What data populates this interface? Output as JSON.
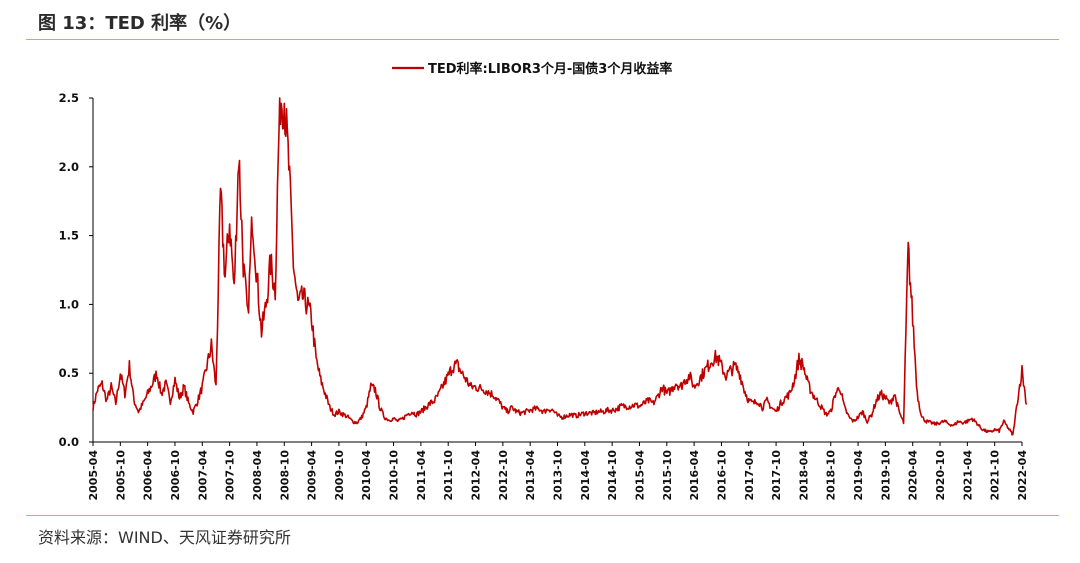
{
  "figure": {
    "title": "图 13：TED 利率（%）",
    "source": "资料来源：WIND、天风证券研究所"
  },
  "colors": {
    "series": "#c00000",
    "rule": "#d9a45c",
    "axis": "#000000"
  },
  "chart_data": {
    "type": "line",
    "title": "",
    "xlabel": "",
    "ylabel": "",
    "ylim": [
      0,
      2.5
    ],
    "yticks": [
      "0.0",
      "0.5",
      "1.0",
      "1.5",
      "2.0",
      "2.5"
    ],
    "xticks": [
      "2005-04",
      "2005-10",
      "2006-04",
      "2006-10",
      "2007-04",
      "2007-10",
      "2008-04",
      "2008-10",
      "2009-04",
      "2009-10",
      "2010-04",
      "2010-10",
      "2011-04",
      "2011-10",
      "2012-04",
      "2012-10",
      "2013-04",
      "2013-10",
      "2014-04",
      "2014-10",
      "2015-04",
      "2015-10",
      "2016-04",
      "2016-10",
      "2017-04",
      "2017-10",
      "2018-04",
      "2018-10",
      "2019-04",
      "2019-10",
      "2020-04",
      "2020-10",
      "2021-04",
      "2021-10",
      "2022-04"
    ],
    "legend": "top-center",
    "grid": false,
    "series": [
      {
        "name": "TED利率:LIBOR3个月-国债3个月收益率",
        "color": "#c00000",
        "points": [
          [
            "2005-04",
            0.25
          ],
          [
            "2005-05",
            0.38
          ],
          [
            "2005-06",
            0.42
          ],
          [
            "2005-07",
            0.3
          ],
          [
            "2005-08",
            0.4
          ],
          [
            "2005-09",
            0.28
          ],
          [
            "2005-10",
            0.5
          ],
          [
            "2005-11",
            0.35
          ],
          [
            "2005-12",
            0.55
          ],
          [
            "2006-01",
            0.3
          ],
          [
            "2006-02",
            0.22
          ],
          [
            "2006-03",
            0.28
          ],
          [
            "2006-04",
            0.35
          ],
          [
            "2006-05",
            0.42
          ],
          [
            "2006-06",
            0.5
          ],
          [
            "2006-07",
            0.35
          ],
          [
            "2006-08",
            0.42
          ],
          [
            "2006-09",
            0.3
          ],
          [
            "2006-10",
            0.45
          ],
          [
            "2006-11",
            0.32
          ],
          [
            "2006-12",
            0.4
          ],
          [
            "2007-01",
            0.28
          ],
          [
            "2007-02",
            0.22
          ],
          [
            "2007-03",
            0.3
          ],
          [
            "2007-04",
            0.4
          ],
          [
            "2007-05",
            0.55
          ],
          [
            "2007-06",
            0.7
          ],
          [
            "2007-07",
            0.4
          ],
          [
            "2007-08",
            1.8
          ],
          [
            "2007-09",
            1.2
          ],
          [
            "2007-10",
            1.6
          ],
          [
            "2007-11",
            1.1
          ],
          [
            "2007-12",
            2.1
          ],
          [
            "2008-01",
            1.3
          ],
          [
            "2008-02",
            0.9
          ],
          [
            "2008-03",
            1.65
          ],
          [
            "2008-04",
            1.2
          ],
          [
            "2008-05",
            0.8
          ],
          [
            "2008-06",
            1.0
          ],
          [
            "2008-07",
            1.3
          ],
          [
            "2008-08",
            1.1
          ],
          [
            "2008-09",
            2.5
          ],
          [
            "2008-10",
            2.5
          ],
          [
            "2008-11",
            2.0
          ],
          [
            "2008-12",
            1.3
          ],
          [
            "2009-01",
            1.0
          ],
          [
            "2009-02",
            1.05
          ],
          [
            "2009-03",
            1.0
          ],
          [
            "2009-04",
            0.9
          ],
          [
            "2009-05",
            0.6
          ],
          [
            "2009-06",
            0.45
          ],
          [
            "2009-07",
            0.35
          ],
          [
            "2009-08",
            0.25
          ],
          [
            "2009-09",
            0.2
          ],
          [
            "2009-10",
            0.22
          ],
          [
            "2009-11",
            0.2
          ],
          [
            "2009-12",
            0.18
          ],
          [
            "2010-01",
            0.15
          ],
          [
            "2010-02",
            0.14
          ],
          [
            "2010-03",
            0.18
          ],
          [
            "2010-04",
            0.25
          ],
          [
            "2010-05",
            0.4
          ],
          [
            "2010-06",
            0.38
          ],
          [
            "2010-07",
            0.25
          ],
          [
            "2010-08",
            0.18
          ],
          [
            "2010-09",
            0.16
          ],
          [
            "2010-10",
            0.17
          ],
          [
            "2010-11",
            0.15
          ],
          [
            "2010-12",
            0.17
          ],
          [
            "2011-01",
            0.2
          ],
          [
            "2011-02",
            0.22
          ],
          [
            "2011-03",
            0.2
          ],
          [
            "2011-04",
            0.22
          ],
          [
            "2011-05",
            0.25
          ],
          [
            "2011-06",
            0.28
          ],
          [
            "2011-07",
            0.3
          ],
          [
            "2011-08",
            0.35
          ],
          [
            "2011-09",
            0.42
          ],
          [
            "2011-10",
            0.48
          ],
          [
            "2011-11",
            0.55
          ],
          [
            "2011-12",
            0.56
          ],
          [
            "2012-01",
            0.5
          ],
          [
            "2012-02",
            0.45
          ],
          [
            "2012-03",
            0.4
          ],
          [
            "2012-04",
            0.4
          ],
          [
            "2012-05",
            0.39
          ],
          [
            "2012-06",
            0.38
          ],
          [
            "2012-07",
            0.36
          ],
          [
            "2012-08",
            0.34
          ],
          [
            "2012-09",
            0.3
          ],
          [
            "2012-10",
            0.25
          ],
          [
            "2012-11",
            0.22
          ],
          [
            "2012-12",
            0.25
          ],
          [
            "2013-01",
            0.22
          ],
          [
            "2013-02",
            0.21
          ],
          [
            "2013-03",
            0.22
          ],
          [
            "2013-04",
            0.23
          ],
          [
            "2013-05",
            0.24
          ],
          [
            "2013-06",
            0.24
          ],
          [
            "2013-07",
            0.22
          ],
          [
            "2013-08",
            0.24
          ],
          [
            "2013-09",
            0.23
          ],
          [
            "2013-10",
            0.19
          ],
          [
            "2013-11",
            0.18
          ],
          [
            "2013-12",
            0.19
          ],
          [
            "2014-01",
            0.2
          ],
          [
            "2014-02",
            0.19
          ],
          [
            "2014-03",
            0.2
          ],
          [
            "2014-04",
            0.21
          ],
          [
            "2014-05",
            0.21
          ],
          [
            "2014-06",
            0.21
          ],
          [
            "2014-07",
            0.22
          ],
          [
            "2014-08",
            0.22
          ],
          [
            "2014-09",
            0.23
          ],
          [
            "2014-10",
            0.23
          ],
          [
            "2014-11",
            0.24
          ],
          [
            "2014-12",
            0.26
          ],
          [
            "2015-01",
            0.26
          ],
          [
            "2015-02",
            0.26
          ],
          [
            "2015-03",
            0.27
          ],
          [
            "2015-04",
            0.26
          ],
          [
            "2015-05",
            0.28
          ],
          [
            "2015-06",
            0.3
          ],
          [
            "2015-07",
            0.28
          ],
          [
            "2015-08",
            0.33
          ],
          [
            "2015-09",
            0.4
          ],
          [
            "2015-10",
            0.35
          ],
          [
            "2015-11",
            0.38
          ],
          [
            "2015-12",
            0.43
          ],
          [
            "2016-01",
            0.4
          ],
          [
            "2016-02",
            0.45
          ],
          [
            "2016-03",
            0.48
          ],
          [
            "2016-04",
            0.4
          ],
          [
            "2016-05",
            0.45
          ],
          [
            "2016-06",
            0.5
          ],
          [
            "2016-07",
            0.55
          ],
          [
            "2016-08",
            0.6
          ],
          [
            "2016-09",
            0.62
          ],
          [
            "2016-10",
            0.55
          ],
          [
            "2016-11",
            0.48
          ],
          [
            "2016-12",
            0.52
          ],
          [
            "2017-01",
            0.55
          ],
          [
            "2017-02",
            0.5
          ],
          [
            "2017-03",
            0.38
          ],
          [
            "2017-04",
            0.3
          ],
          [
            "2017-05",
            0.28
          ],
          [
            "2017-06",
            0.3
          ],
          [
            "2017-07",
            0.25
          ],
          [
            "2017-08",
            0.3
          ],
          [
            "2017-09",
            0.25
          ],
          [
            "2017-10",
            0.22
          ],
          [
            "2017-11",
            0.28
          ],
          [
            "2017-12",
            0.32
          ],
          [
            "2018-01",
            0.35
          ],
          [
            "2018-02",
            0.45
          ],
          [
            "2018-03",
            0.6
          ],
          [
            "2018-04",
            0.55
          ],
          [
            "2018-05",
            0.42
          ],
          [
            "2018-06",
            0.35
          ],
          [
            "2018-07",
            0.3
          ],
          [
            "2018-08",
            0.25
          ],
          [
            "2018-09",
            0.2
          ],
          [
            "2018-10",
            0.22
          ],
          [
            "2018-11",
            0.35
          ],
          [
            "2018-12",
            0.4
          ],
          [
            "2019-01",
            0.25
          ],
          [
            "2019-02",
            0.18
          ],
          [
            "2019-03",
            0.15
          ],
          [
            "2019-04",
            0.18
          ],
          [
            "2019-05",
            0.22
          ],
          [
            "2019-06",
            0.15
          ],
          [
            "2019-07",
            0.2
          ],
          [
            "2019-08",
            0.3
          ],
          [
            "2019-09",
            0.35
          ],
          [
            "2019-10",
            0.32
          ],
          [
            "2019-11",
            0.28
          ],
          [
            "2019-12",
            0.35
          ],
          [
            "2020-01",
            0.22
          ],
          [
            "2020-02",
            0.14
          ],
          [
            "2020-03",
            1.4
          ],
          [
            "2020-04",
            0.9
          ],
          [
            "2020-05",
            0.35
          ],
          [
            "2020-06",
            0.18
          ],
          [
            "2020-07",
            0.15
          ],
          [
            "2020-08",
            0.14
          ],
          [
            "2020-09",
            0.13
          ],
          [
            "2020-10",
            0.14
          ],
          [
            "2020-11",
            0.15
          ],
          [
            "2020-12",
            0.13
          ],
          [
            "2021-01",
            0.12
          ],
          [
            "2021-02",
            0.15
          ],
          [
            "2021-03",
            0.14
          ],
          [
            "2021-04",
            0.15
          ],
          [
            "2021-05",
            0.17
          ],
          [
            "2021-06",
            0.14
          ],
          [
            "2021-07",
            0.1
          ],
          [
            "2021-08",
            0.08
          ],
          [
            "2021-09",
            0.07
          ],
          [
            "2021-10",
            0.09
          ],
          [
            "2021-11",
            0.08
          ],
          [
            "2021-12",
            0.15
          ],
          [
            "2022-01",
            0.1
          ],
          [
            "2022-02",
            0.05
          ],
          [
            "2022-03",
            0.3
          ],
          [
            "2022-04",
            0.52
          ],
          [
            "2022-05",
            0.27
          ]
        ]
      }
    ]
  }
}
